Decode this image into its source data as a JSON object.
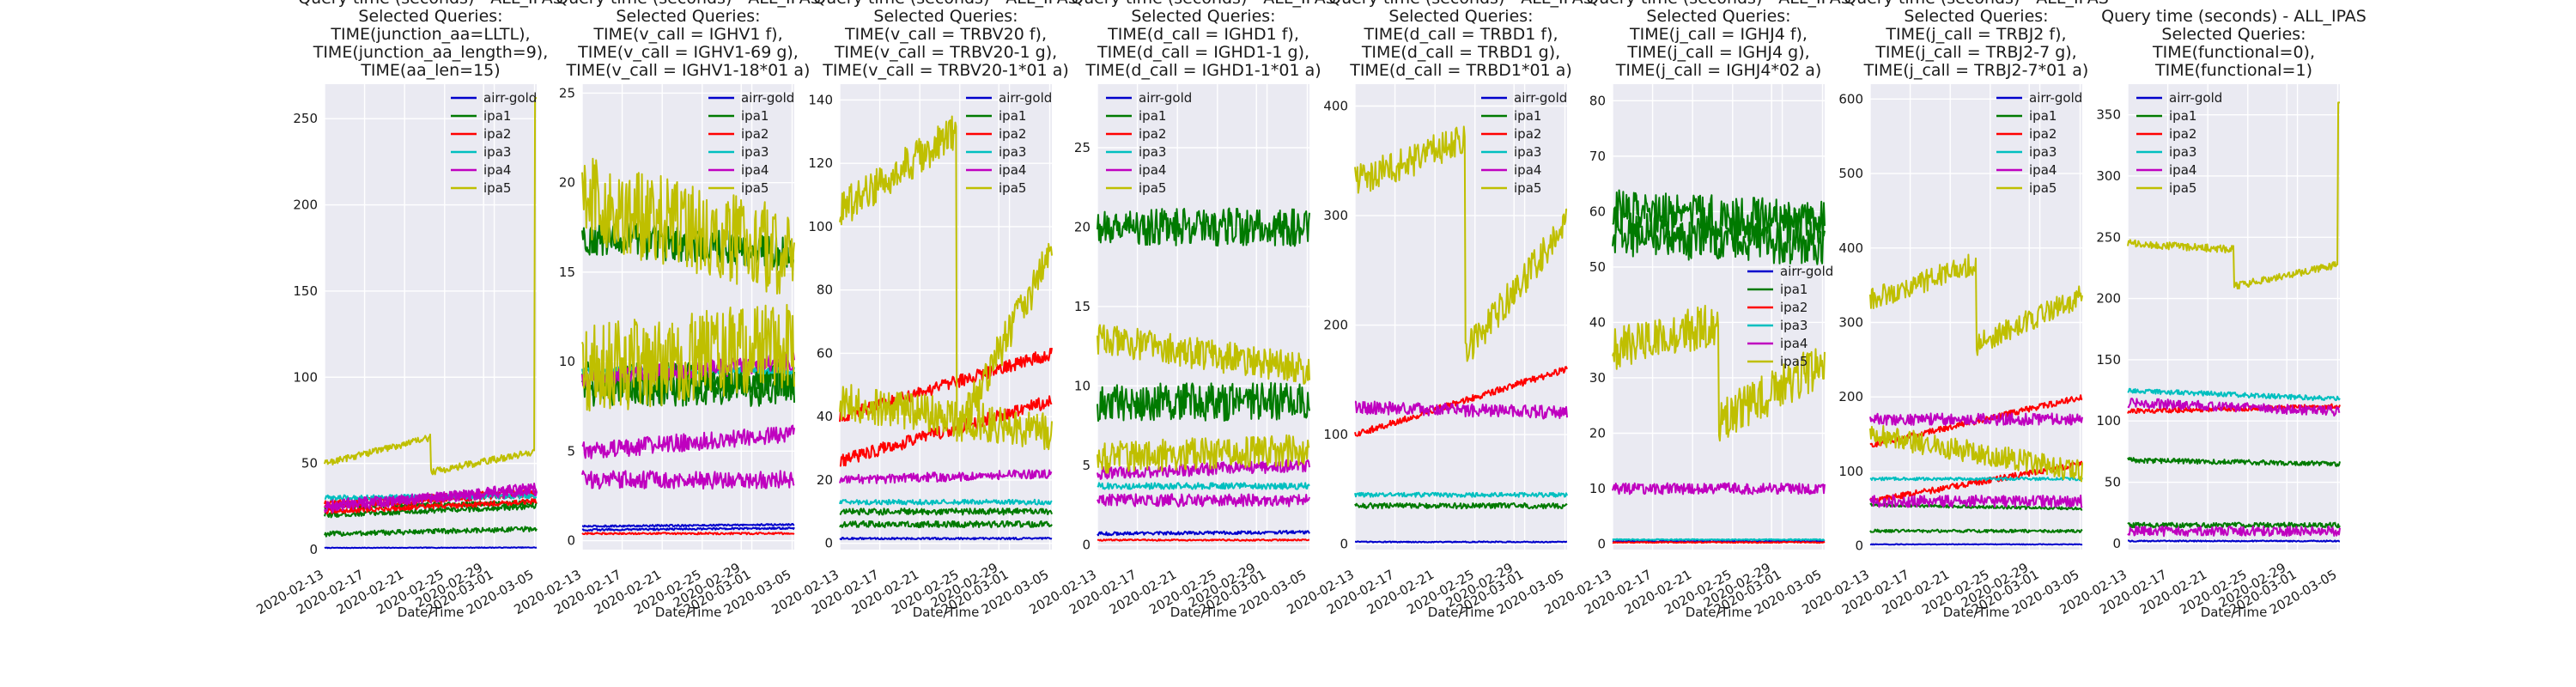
{
  "chart_data": [
    {
      "type": "line",
      "title_lines": [
        "Query time (seconds) - ALL_IPAS",
        "Selected Queries:",
        "TIME(junction_aa=LLTL),",
        "TIME(junction_aa_length=9),",
        "TIME(aa_len=15)"
      ],
      "xlabel": "Date/Time",
      "xticks": [
        "2020-02-13",
        "2020-02-17",
        "2020-02-21",
        "2020-02-25",
        "2020-02-29",
        "2020-03-01",
        "2020-03-05"
      ],
      "ylim": [
        0,
        270
      ],
      "yticks": [
        0,
        50,
        100,
        150,
        200,
        250
      ],
      "legend": "top-right",
      "grid": true,
      "series": [
        {
          "name": "airr-gold",
          "color": "#0000cc",
          "start": 1,
          "end": 2,
          "noise": 0.2,
          "lines": [
            {
              "s": 1,
              "e": 1.2
            }
          ]
        },
        {
          "name": "ipa1",
          "color": "#007a00",
          "start": 10,
          "end": 18,
          "noise": 1.5,
          "lines": [
            {
              "s": 9,
              "e": 12
            },
            {
              "s": 20,
              "e": 25
            },
            {
              "s": 25,
              "e": 27
            }
          ]
        },
        {
          "name": "ipa2",
          "color": "#ff0000",
          "start": 22,
          "end": 30,
          "noise": 1.5,
          "lines": [
            {
              "s": 22,
              "e": 28
            },
            {
              "s": 25,
              "e": 32
            },
            {
              "s": 27,
              "e": 34
            }
          ]
        },
        {
          "name": "ipa3",
          "color": "#00bfbf",
          "start": 30,
          "end": 30,
          "noise": 1.5,
          "lines": [
            {
              "s": 30,
              "e": 31
            }
          ]
        },
        {
          "name": "ipa4",
          "color": "#bf00bf",
          "start": 24,
          "end": 30,
          "noise": 3,
          "lines": [
            {
              "s": 24,
              "e": 36
            },
            {
              "s": 26,
              "e": 34
            }
          ]
        },
        {
          "name": "ipa5",
          "color": "#bfbf00",
          "start": 50,
          "end": 52,
          "noise": 2,
          "lines": [
            {
              "s": 50,
              "e": 65,
              "drop": 0.5,
              "after": 45,
              "spikeAt": 0.99,
              "spikeVal": 262
            }
          ]
        }
      ]
    },
    {
      "type": "line",
      "title_lines": [
        "Query time (seconds) - ALL_IPAS",
        "Selected Queries:",
        "TIME(v_call = IGHV1 f),",
        "TIME(v_call = IGHV1-69 g),",
        "TIME(v_call = IGHV1-18*01 a)"
      ],
      "xlabel": "Date/Time",
      "xticks": [
        "2020-02-13",
        "2020-02-17",
        "2020-02-21",
        "2020-02-25",
        "2020-02-29",
        "2020-03-01",
        "2020-03-05"
      ],
      "ylim": [
        -0.5,
        25.5
      ],
      "yticks": [
        0,
        5,
        10,
        15,
        20,
        25
      ],
      "legend": "top-right",
      "grid": true,
      "series": [
        {
          "name": "airr-gold",
          "color": "#0000cc",
          "noise": 0.05,
          "lines": [
            {
              "s": 0.8,
              "e": 0.9
            },
            {
              "s": 0.6,
              "e": 0.7
            }
          ]
        },
        {
          "name": "ipa1",
          "color": "#007a00",
          "noise": 1.0,
          "lines": [
            {
              "s": 17,
              "e": 16
            },
            {
              "s": 9,
              "e": 9
            },
            {
              "s": 8.5,
              "e": 8.5
            }
          ]
        },
        {
          "name": "ipa2",
          "color": "#ff0000",
          "noise": 0.05,
          "lines": [
            {
              "s": 0.4,
              "e": 0.4
            }
          ]
        },
        {
          "name": "ipa3",
          "color": "#00bfbf",
          "noise": 0.2,
          "lines": [
            {
              "s": 9.5,
              "e": 9.5
            }
          ]
        },
        {
          "name": "ipa4",
          "color": "#bf00bf",
          "noise": 0.5,
          "lines": [
            {
              "s": 5,
              "e": 6
            },
            {
              "s": 3.4,
              "e": 3.4
            },
            {
              "s": 9,
              "e": 10
            }
          ]
        },
        {
          "name": "ipa5",
          "color": "#bfbf00",
          "noise": 2.5,
          "lines": [
            {
              "s": 19,
              "e": 16
            },
            {
              "s": 9.5,
              "e": 11
            }
          ]
        }
      ]
    },
    {
      "type": "line",
      "title_lines": [
        "Query time (seconds) - ALL_IPAS",
        "Selected Queries:",
        "TIME(v_call = TRBV20 f),",
        "TIME(v_call = TRBV20-1 g),",
        "TIME(v_call = TRBV20-1*01  a)"
      ],
      "xlabel": "Date/Time",
      "xticks": [
        "2020-02-13",
        "2020-02-17",
        "2020-02-21",
        "2020-02-25",
        "2020-02-29",
        "2020-03-01",
        "2020-03-05"
      ],
      "ylim": [
        -2,
        145
      ],
      "yticks": [
        0,
        20,
        40,
        60,
        80,
        100,
        120,
        140
      ],
      "legend": "top-right",
      "grid": true,
      "series": [
        {
          "name": "airr-gold",
          "color": "#0000cc",
          "noise": 0.3,
          "lines": [
            {
              "s": 1.5,
              "e": 1.5
            }
          ]
        },
        {
          "name": "ipa1",
          "color": "#007a00",
          "noise": 1.0,
          "lines": [
            {
              "s": 10,
              "e": 10
            },
            {
              "s": 6,
              "e": 6
            }
          ]
        },
        {
          "name": "ipa2",
          "color": "#ff0000",
          "noise": 2.0,
          "lines": [
            {
              "s": 40,
              "e": 60
            },
            {
              "s": 26,
              "e": 45
            }
          ]
        },
        {
          "name": "ipa3",
          "color": "#00bfbf",
          "noise": 0.8,
          "lines": [
            {
              "s": 13,
              "e": 13
            }
          ]
        },
        {
          "name": "ipa4",
          "color": "#bf00bf",
          "noise": 1.5,
          "lines": [
            {
              "s": 20,
              "e": 22
            }
          ]
        },
        {
          "name": "ipa5",
          "color": "#bfbf00",
          "noise": 6,
          "lines": [
            {
              "s": 105,
              "e": 130,
              "drop": 0.55,
              "after": 35
            },
            {
              "s": 45,
              "e": 35
            }
          ]
        }
      ]
    },
    {
      "type": "line",
      "title_lines": [
        "Query time (seconds) - ALL_IPAS",
        "Selected Queries:",
        "TIME(d_call = IGHD1 f),",
        "TIME(d_call = IGHD1-1 g),",
        "TIME(d_call = IGHD1-1*01 a)"
      ],
      "xlabel": "Date/Time",
      "xticks": [
        "2020-02-13",
        "2020-02-17",
        "2020-02-21",
        "2020-02-25",
        "2020-02-29",
        "2020-03-01",
        "2020-03-05"
      ],
      "ylim": [
        -0.3,
        29
      ],
      "yticks": [
        0,
        5,
        10,
        15,
        20,
        25
      ],
      "legend": "top-left",
      "grid": true,
      "series": [
        {
          "name": "airr-gold",
          "color": "#0000cc",
          "noise": 0.1,
          "lines": [
            {
              "s": 0.7,
              "e": 0.8
            }
          ]
        },
        {
          "name": "ipa1",
          "color": "#007a00",
          "noise": 1.2,
          "lines": [
            {
              "s": 20,
              "e": 20
            },
            {
              "s": 9,
              "e": 9
            }
          ]
        },
        {
          "name": "ipa2",
          "color": "#ff0000",
          "noise": 0.05,
          "lines": [
            {
              "s": 0.3,
              "e": 0.3
            }
          ]
        },
        {
          "name": "ipa3",
          "color": "#00bfbf",
          "noise": 0.2,
          "lines": [
            {
              "s": 3.7,
              "e": 3.7
            }
          ]
        },
        {
          "name": "ipa4",
          "color": "#bf00bf",
          "noise": 0.4,
          "lines": [
            {
              "s": 4.5,
              "e": 5
            },
            {
              "s": 2.8,
              "e": 2.8
            }
          ]
        },
        {
          "name": "ipa5",
          "color": "#bfbf00",
          "noise": 1.0,
          "lines": [
            {
              "s": 13,
              "e": 11
            },
            {
              "s": 5.5,
              "e": 6
            }
          ]
        }
      ]
    },
    {
      "type": "line",
      "title_lines": [
        "Query time (seconds) - ALL_IPAS",
        "Selected Queries:",
        "TIME(d_call = TRBD1 f),",
        "TIME(d_call = TRBD1 g),",
        "TIME(d_call = TRBD1*01 a)"
      ],
      "xlabel": "Date/Time",
      "xticks": [
        "2020-02-13",
        "2020-02-17",
        "2020-02-21",
        "2020-02-25",
        "2020-02-29",
        "2020-03-01",
        "2020-03-05"
      ],
      "ylim": [
        -5,
        420
      ],
      "yticks": [
        0,
        100,
        200,
        300,
        400
      ],
      "legend": "top-right",
      "grid": true,
      "series": [
        {
          "name": "airr-gold",
          "color": "#0000cc",
          "noise": 0.5,
          "lines": [
            {
              "s": 2,
              "e": 2
            }
          ]
        },
        {
          "name": "ipa1",
          "color": "#007a00",
          "noise": 2.5,
          "lines": [
            {
              "s": 35,
              "e": 35
            }
          ]
        },
        {
          "name": "ipa2",
          "color": "#ff0000",
          "noise": 3,
          "lines": [
            {
              "s": 100,
              "e": 160
            }
          ]
        },
        {
          "name": "ipa3",
          "color": "#00bfbf",
          "noise": 2,
          "lines": [
            {
              "s": 45,
              "e": 45
            }
          ]
        },
        {
          "name": "ipa4",
          "color": "#bf00bf",
          "noise": 6,
          "lines": [
            {
              "s": 125,
              "e": 120
            }
          ]
        },
        {
          "name": "ipa5",
          "color": "#bfbf00",
          "noise": 15,
          "lines": [
            {
              "s": 330,
              "e": 370,
              "drop": 0.52,
              "after": 175
            }
          ]
        }
      ]
    },
    {
      "type": "line",
      "title_lines": [
        "Query time (seconds) - ALL_IPAS",
        "Selected Queries:",
        "TIME(j_call = IGHJ4 f),",
        "TIME(j_call = IGHJ4 g),",
        "TIME(j_call = IGHJ4*02 a)"
      ],
      "xlabel": "Date/Time",
      "xticks": [
        "2020-02-13",
        "2020-02-17",
        "2020-02-21",
        "2020-02-25",
        "2020-02-29",
        "2020-03-01",
        "2020-03-05"
      ],
      "ylim": [
        -1,
        83
      ],
      "yticks": [
        0,
        10,
        20,
        30,
        40,
        50,
        60,
        70,
        80
      ],
      "legend": "center-right",
      "grid": true,
      "series": [
        {
          "name": "airr-gold",
          "color": "#0000cc",
          "noise": 0.1,
          "lines": [
            {
              "s": 0.5,
              "e": 0.5
            }
          ]
        },
        {
          "name": "ipa1",
          "color": "#007a00",
          "noise": 4,
          "lines": [
            {
              "s": 60,
              "e": 58
            },
            {
              "s": 56,
              "e": 54
            }
          ]
        },
        {
          "name": "ipa2",
          "color": "#ff0000",
          "noise": 0.1,
          "lines": [
            {
              "s": 0.3,
              "e": 0.3
            }
          ]
        },
        {
          "name": "ipa3",
          "color": "#00bfbf",
          "noise": 0.1,
          "lines": [
            {
              "s": 0.8,
              "e": 0.8
            }
          ]
        },
        {
          "name": "ipa4",
          "color": "#bf00bf",
          "noise": 1,
          "lines": [
            {
              "s": 10,
              "e": 10
            }
          ]
        },
        {
          "name": "ipa5",
          "color": "#bfbf00",
          "noise": 4,
          "lines": [
            {
              "s": 35,
              "e": 40,
              "drop": 0.5,
              "after": 22
            }
          ]
        }
      ]
    },
    {
      "type": "line",
      "title_lines": [
        "Query time (seconds) - ALL_IPAS",
        "Selected Queries:",
        "TIME(j_call = TRBJ2 f),",
        "TIME(j_call = TRBJ2-7 g),",
        "TIME(j_call = TRBJ2-7*01 a)"
      ],
      "xlabel": "Date/Time",
      "xticks": [
        "2020-02-13",
        "2020-02-17",
        "2020-02-21",
        "2020-02-25",
        "2020-02-29",
        "2020-03-01",
        "2020-03-05"
      ],
      "ylim": [
        -5,
        620
      ],
      "yticks": [
        0,
        100,
        200,
        300,
        400,
        500,
        600
      ],
      "legend": "top-right",
      "grid": true,
      "series": [
        {
          "name": "airr-gold",
          "color": "#0000cc",
          "noise": 0.5,
          "lines": [
            {
              "s": 2,
              "e": 2
            }
          ]
        },
        {
          "name": "ipa1",
          "color": "#007a00",
          "noise": 2,
          "lines": [
            {
              "s": 55,
              "e": 50
            },
            {
              "s": 20,
              "e": 20
            }
          ]
        },
        {
          "name": "ipa2",
          "color": "#ff0000",
          "noise": 4,
          "lines": [
            {
              "s": 135,
              "e": 200
            },
            {
              "s": 60,
              "e": 110
            }
          ]
        },
        {
          "name": "ipa3",
          "color": "#00bfbf",
          "noise": 2,
          "lines": [
            {
              "s": 90,
              "e": 90
            }
          ]
        },
        {
          "name": "ipa4",
          "color": "#bf00bf",
          "noise": 8,
          "lines": [
            {
              "s": 170,
              "e": 170
            },
            {
              "s": 60,
              "e": 60
            }
          ]
        },
        {
          "name": "ipa5",
          "color": "#bfbf00",
          "noise": 15,
          "lines": [
            {
              "s": 330,
              "e": 380,
              "drop": 0.5,
              "after": 270
            },
            {
              "s": 150,
              "e": 100
            }
          ]
        }
      ]
    },
    {
      "type": "line",
      "title_lines": [
        "Query time (seconds) - ALL_IPAS",
        "Selected Queries:",
        "TIME(functional=0),",
        "TIME(functional=1)"
      ],
      "xlabel": "Date/Time",
      "xticks": [
        "2020-02-13",
        "2020-02-17",
        "2020-02-21",
        "2020-02-25",
        "2020-02-29",
        "2020-03-01",
        "2020-03-05"
      ],
      "ylim": [
        -5,
        375
      ],
      "yticks": [
        0,
        50,
        100,
        150,
        200,
        250,
        300,
        350
      ],
      "legend": "top-left",
      "grid": true,
      "series": [
        {
          "name": "airr-gold",
          "color": "#0000cc",
          "noise": 0.5,
          "lines": [
            {
              "s": 2,
              "e": 2
            }
          ]
        },
        {
          "name": "ipa1",
          "color": "#007a00",
          "noise": 2,
          "lines": [
            {
              "s": 68,
              "e": 65
            },
            {
              "s": 15,
              "e": 15
            }
          ]
        },
        {
          "name": "ipa2",
          "color": "#ff0000",
          "noise": 2,
          "lines": [
            {
              "s": 108,
              "e": 112
            }
          ]
        },
        {
          "name": "ipa3",
          "color": "#00bfbf",
          "noise": 2,
          "lines": [
            {
              "s": 125,
              "e": 118
            }
          ]
        },
        {
          "name": "ipa4",
          "color": "#bf00bf",
          "noise": 4,
          "lines": [
            {
              "s": 115,
              "e": 108
            },
            {
              "s": 10,
              "e": 10
            }
          ]
        },
        {
          "name": "ipa5",
          "color": "#bfbf00",
          "noise": 3,
          "lines": [
            {
              "s": 245,
              "e": 240,
              "drop": 0.5,
              "after": 210,
              "spikeAt": 0.99,
              "spikeVal": 360
            }
          ]
        }
      ]
    }
  ]
}
